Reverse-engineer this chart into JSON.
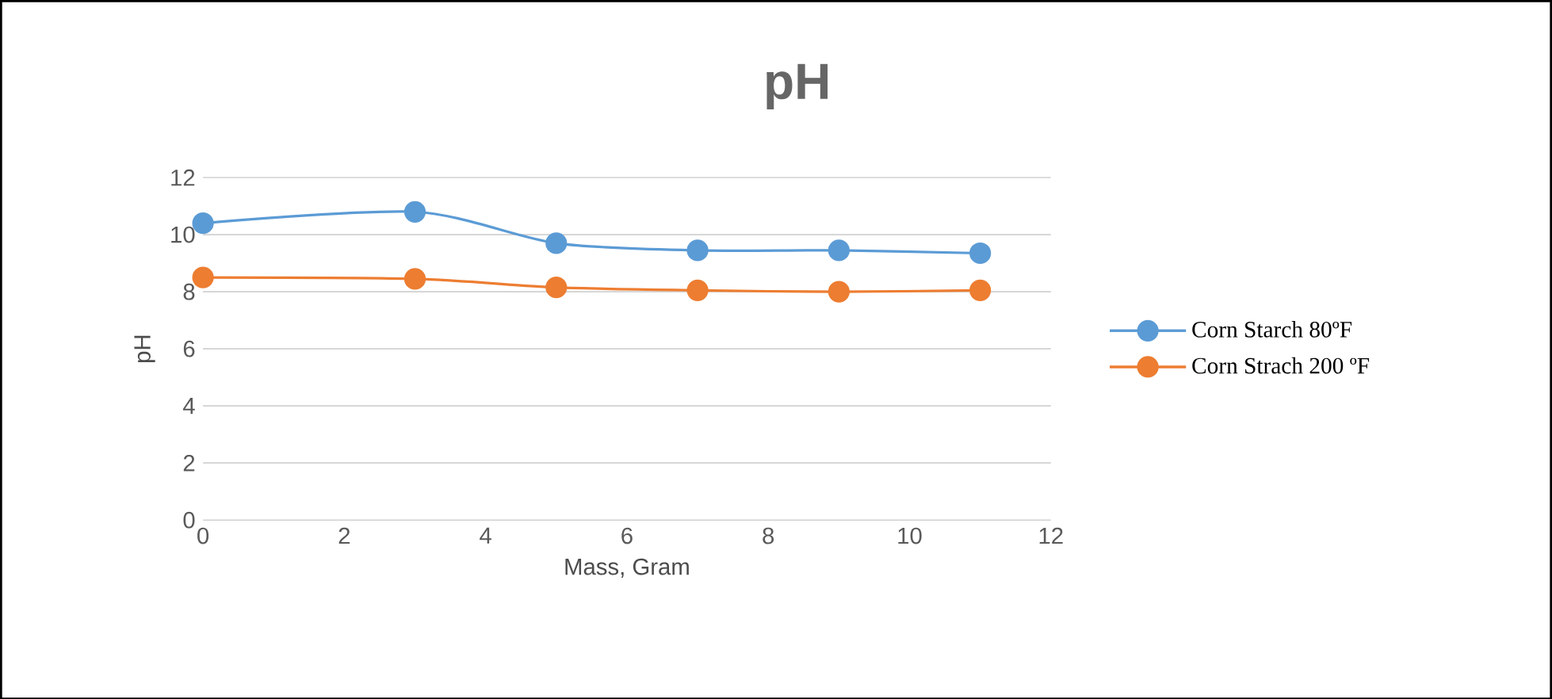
{
  "chart_data": {
    "type": "line",
    "title": "pH",
    "xlabel": "Mass, Gram",
    "ylabel": "pH",
    "x": [
      0,
      3,
      5,
      7,
      9,
      11
    ],
    "series": [
      {
        "name": "Corn Starch 80ºF",
        "color": "#5b9bd5",
        "values": [
          10.4,
          10.8,
          9.7,
          9.45,
          9.45,
          9.35
        ]
      },
      {
        "name": "Corn Strach 200 ºF",
        "color": "#ed7d31",
        "values": [
          8.5,
          8.45,
          8.15,
          8.05,
          8.0,
          8.05
        ]
      }
    ],
    "xlim": [
      0,
      12
    ],
    "xticks": [
      0,
      2,
      4,
      6,
      8,
      10,
      12
    ],
    "ylim": [
      0,
      12
    ],
    "yticks": [
      0,
      2,
      4,
      6,
      8,
      10,
      12
    ],
    "grid": "y",
    "legend": "right",
    "marker": "circle",
    "line_style": "solid"
  }
}
